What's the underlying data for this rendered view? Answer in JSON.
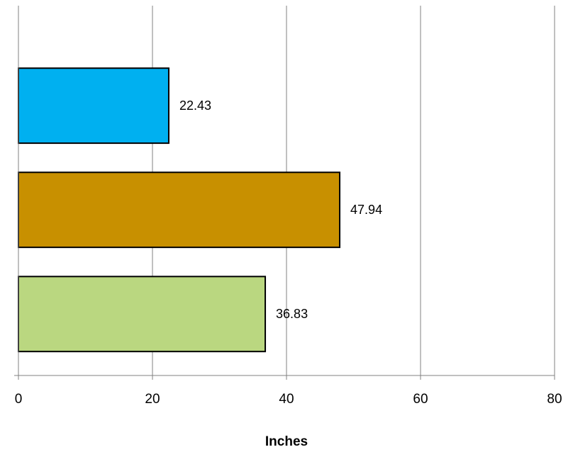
{
  "chart_data": {
    "type": "bar",
    "orientation": "horizontal",
    "categories": [
      "",
      "",
      ""
    ],
    "values": [
      22.43,
      47.94,
      36.83
    ],
    "data_labels": [
      "22.43",
      "47.94",
      "36.83"
    ],
    "colors": [
      "#00B0F0",
      "#C89000",
      "#BAD780"
    ],
    "title": "",
    "xlabel": "Inches",
    "ylabel": "",
    "xlim": [
      0,
      80
    ],
    "x_ticks": [
      0,
      20,
      40,
      60,
      80
    ],
    "x_tick_labels": [
      "0",
      "20",
      "40",
      "60",
      "80"
    ],
    "grid": "vertical",
    "legend": "none"
  }
}
